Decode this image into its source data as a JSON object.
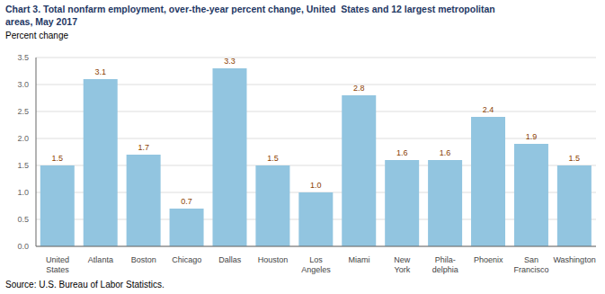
{
  "chart_data": {
    "type": "bar",
    "title": "Chart 3. Total nonfarm employment, over-the-year percent change, United  States and 12 largest metropolitan\nareas, May 2017",
    "ylabel": "Percent change",
    "source": "Source: U.S. Bureau of Labor Statistics.",
    "categories": [
      "United\nStates",
      "Atlanta",
      "Boston",
      "Chicago",
      "Dallas",
      "Houston",
      "Los\nAngeles",
      "Miami",
      "New\nYork",
      "Phila-\ndelphia",
      "Phoenix",
      "San\nFrancisco",
      "Washington"
    ],
    "values": [
      1.5,
      3.1,
      1.7,
      0.7,
      3.3,
      1.5,
      1.0,
      2.8,
      1.6,
      1.6,
      2.4,
      1.9,
      1.5
    ],
    "value_labels": [
      "1.5",
      "3.1",
      "1.7",
      "0.7",
      "3.3",
      "1.5",
      "1.0",
      "2.8",
      "1.6",
      "1.6",
      "2.4",
      "1.9",
      "1.5"
    ],
    "data_labels": true,
    "color": "#92C5E0",
    "ylim": [
      0,
      3.5
    ],
    "yticks": [
      {
        "value": 0,
        "label": "0.0"
      },
      0.5,
      {
        "value": 1,
        "label": "1.0"
      },
      1.5,
      {
        "value": 2,
        "label": "2.0"
      },
      2.5,
      {
        "value": 3,
        "label": "3.0"
      },
      3.5
    ],
    "grid": true
  }
}
